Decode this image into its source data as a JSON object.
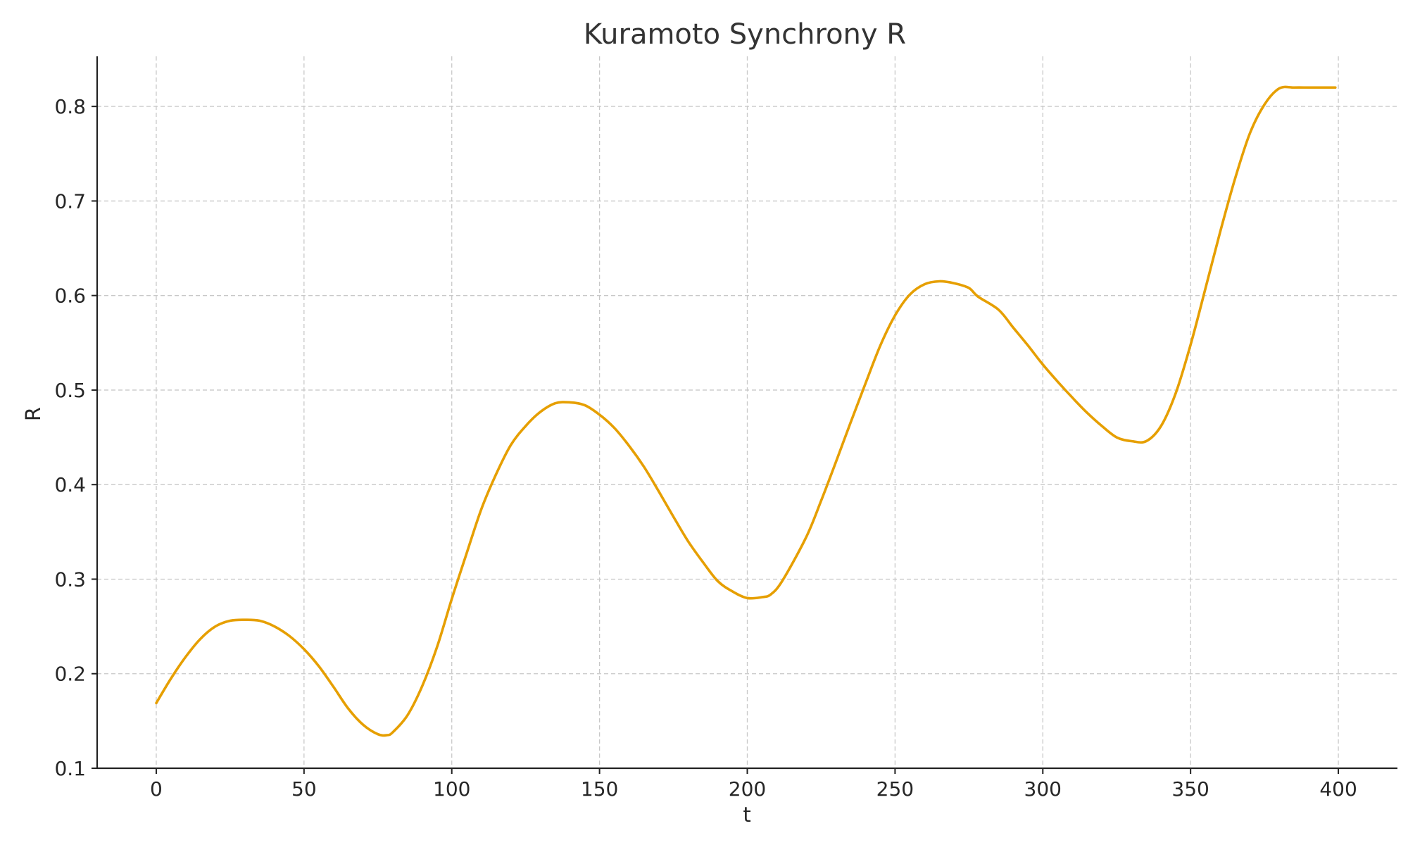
{
  "chart_data": {
    "type": "line",
    "title": "Kuramoto Synchrony R",
    "xlabel": "t",
    "ylabel": "R",
    "xlim": [
      -20,
      420
    ],
    "ylim": [
      0.1,
      0.853
    ],
    "xticks": [
      0,
      50,
      100,
      150,
      200,
      250,
      300,
      350,
      400
    ],
    "yticks": [
      0.1,
      0.2,
      0.3,
      0.4,
      0.5,
      0.6,
      0.7,
      0.8
    ],
    "grid": true,
    "line_color": "#E69F00",
    "series": [
      {
        "x": [
          0,
          5,
          10,
          15,
          20,
          25,
          30,
          35,
          40,
          45,
          50,
          55,
          60,
          65,
          70,
          75,
          78,
          80,
          85,
          90,
          95,
          100,
          105,
          110,
          115,
          120,
          125,
          130,
          135,
          140,
          145,
          150,
          155,
          160,
          165,
          170,
          175,
          180,
          185,
          190,
          195,
          200,
          205,
          208,
          212,
          220,
          225,
          230,
          235,
          240,
          245,
          250,
          255,
          260,
          265,
          270,
          275,
          278,
          285,
          290,
          295,
          300,
          305,
          310,
          315,
          320,
          325,
          330,
          335,
          340,
          345,
          350,
          355,
          360,
          365,
          370,
          375,
          380,
          385,
          390,
          395,
          399
        ],
        "values": [
          0.169,
          0.195,
          0.218,
          0.237,
          0.25,
          0.256,
          0.257,
          0.256,
          0.25,
          0.24,
          0.226,
          0.208,
          0.186,
          0.163,
          0.146,
          0.136,
          0.135,
          0.138,
          0.156,
          0.187,
          0.228,
          0.279,
          0.327,
          0.374,
          0.411,
          0.442,
          0.462,
          0.477,
          0.486,
          0.487,
          0.484,
          0.474,
          0.46,
          0.441,
          0.419,
          0.393,
          0.366,
          0.34,
          0.318,
          0.298,
          0.287,
          0.28,
          0.281,
          0.284,
          0.299,
          0.345,
          0.383,
          0.424,
          0.466,
          0.507,
          0.547,
          0.579,
          0.601,
          0.612,
          0.615,
          0.613,
          0.608,
          0.599,
          0.585,
          0.566,
          0.547,
          0.527,
          0.509,
          0.492,
          0.476,
          0.462,
          0.45,
          0.446,
          0.446,
          0.462,
          0.497,
          0.548,
          0.607,
          0.667,
          0.723,
          0.771,
          0.802,
          0.819,
          0.82,
          0.82,
          0.82,
          0.82
        ]
      }
    ]
  }
}
